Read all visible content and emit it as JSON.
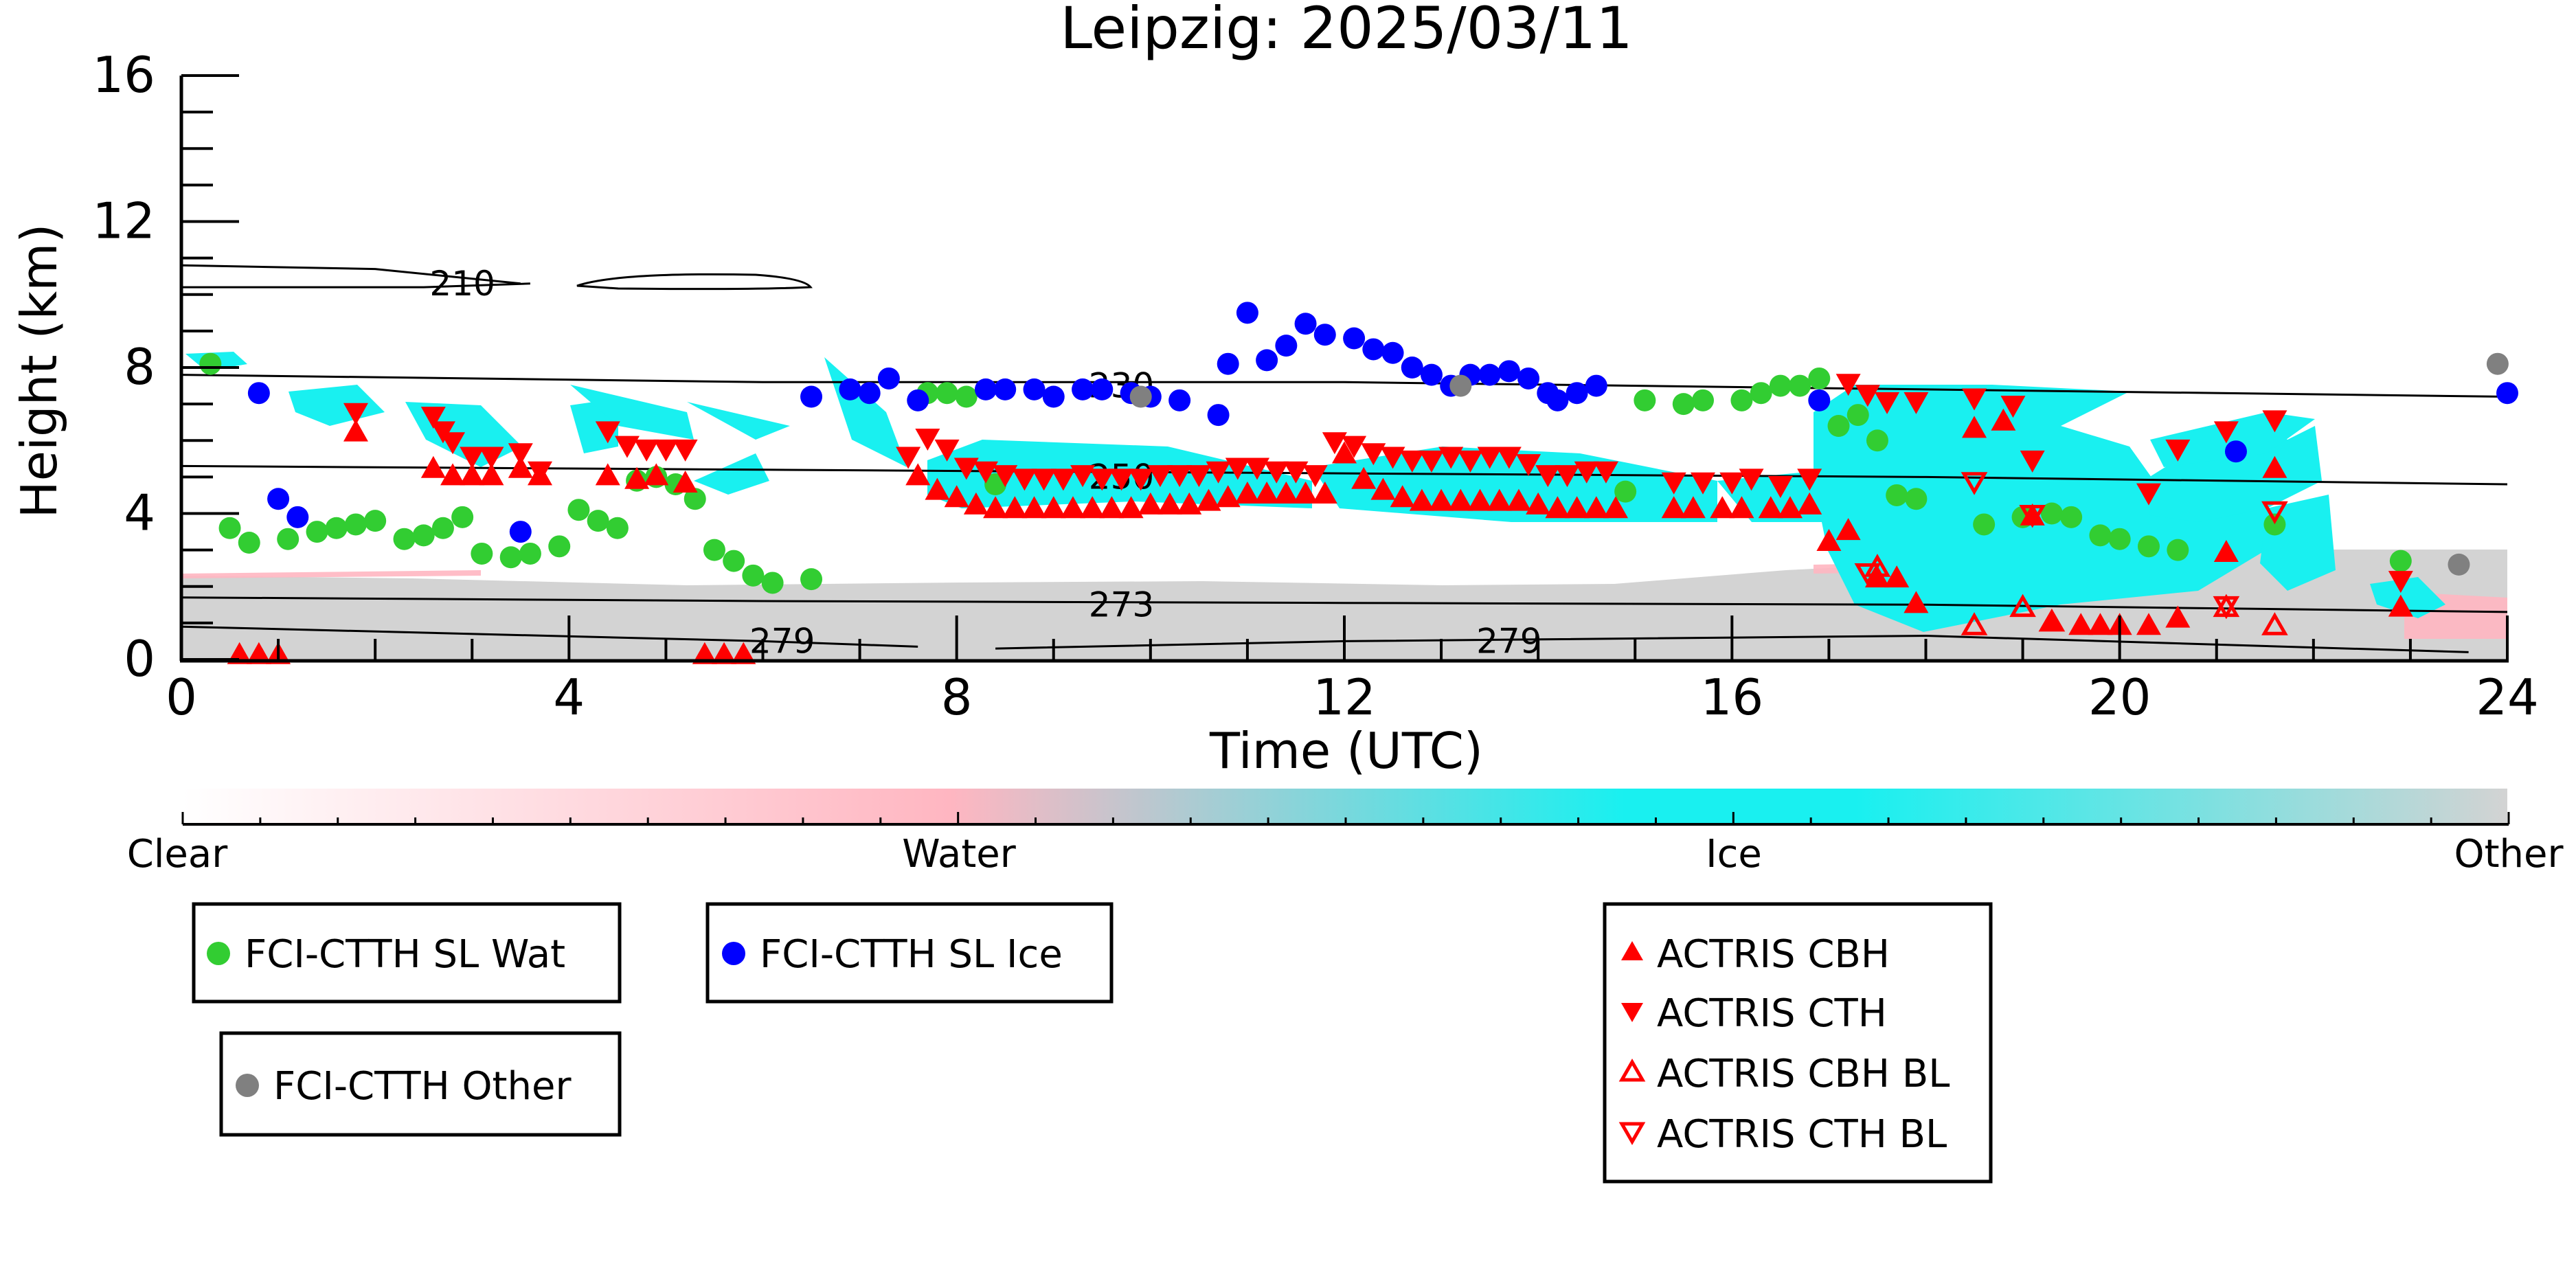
{
  "chart_data": {
    "type": "scatter",
    "title": "Leipzig: 2025/03/11",
    "xlabel": "Time (UTC)",
    "ylabel": "Height (km)",
    "xlim": [
      0,
      24
    ],
    "ylim": [
      0,
      16
    ],
    "x_ticks": [
      0,
      4,
      8,
      12,
      16,
      20,
      24
    ],
    "y_ticks": [
      0,
      4,
      8,
      12,
      16
    ],
    "colorbar": {
      "labels": [
        "Clear",
        "Water",
        "Ice",
        "Other"
      ],
      "stops": [
        "#ffffff",
        "#ffb6c1",
        "#19f0f0",
        "#d3d3d3"
      ]
    },
    "contours": [
      {
        "label": "210",
        "points": [
          [
            0,
            10.8
          ],
          [
            2,
            10.7
          ],
          [
            3.5,
            10.3
          ]
        ],
        "label_at": [
          2.9,
          10.3
        ]
      },
      {
        "label": "210",
        "points": [
          [
            0,
            10.2
          ],
          [
            2.5,
            10.2
          ],
          [
            3.6,
            10.3
          ]
        ]
      },
      {
        "label": "230",
        "points": [
          [
            0,
            7.8
          ],
          [
            6,
            7.6
          ],
          [
            12,
            7.6
          ],
          [
            18,
            7.4
          ],
          [
            24,
            7.2
          ]
        ],
        "label_at": [
          9.7,
          7.5
        ]
      },
      {
        "label": "250",
        "points": [
          [
            0,
            5.3
          ],
          [
            6,
            5.2
          ],
          [
            12,
            5.1
          ],
          [
            18,
            5.0
          ],
          [
            24,
            4.8
          ]
        ],
        "label_at": [
          9.7,
          5.0
        ]
      },
      {
        "label": "273",
        "points": [
          [
            0,
            1.7
          ],
          [
            6,
            1.6
          ],
          [
            12,
            1.55
          ],
          [
            18,
            1.5
          ],
          [
            24,
            1.3
          ]
        ],
        "label_at": [
          9.7,
          1.5
        ]
      },
      {
        "label": "279",
        "points": [
          [
            0,
            0.9
          ],
          [
            6,
            0.5
          ],
          [
            7.6,
            0.35
          ]
        ],
        "label_at": [
          6.2,
          0.5
        ]
      },
      {
        "label": "279",
        "points": [
          [
            8.4,
            0.3
          ],
          [
            12,
            0.5
          ],
          [
            18,
            0.65
          ],
          [
            23.6,
            0.2
          ]
        ],
        "label_at": [
          13.7,
          0.5
        ]
      }
    ],
    "series": [
      {
        "name": "FCI-CTTH SL Wat",
        "color": "#32cd32",
        "marker": "circle",
        "points": [
          [
            0.3,
            8.1
          ],
          [
            0.5,
            3.6
          ],
          [
            0.7,
            3.2
          ],
          [
            1.1,
            3.3
          ],
          [
            1.4,
            3.5
          ],
          [
            1.6,
            3.6
          ],
          [
            1.8,
            3.7
          ],
          [
            2.0,
            3.8
          ],
          [
            2.3,
            3.3
          ],
          [
            2.5,
            3.4
          ],
          [
            2.7,
            3.6
          ],
          [
            2.9,
            3.9
          ],
          [
            3.1,
            2.9
          ],
          [
            3.4,
            2.8
          ],
          [
            3.6,
            2.9
          ],
          [
            3.9,
            3.1
          ],
          [
            4.1,
            4.1
          ],
          [
            4.3,
            3.8
          ],
          [
            4.5,
            3.6
          ],
          [
            4.7,
            4.9
          ],
          [
            4.9,
            5.0
          ],
          [
            5.1,
            4.8
          ],
          [
            5.3,
            4.4
          ],
          [
            5.5,
            3.0
          ],
          [
            5.7,
            2.7
          ],
          [
            5.9,
            2.3
          ],
          [
            6.1,
            2.1
          ],
          [
            6.5,
            2.2
          ],
          [
            7.7,
            7.3
          ],
          [
            7.9,
            7.3
          ],
          [
            8.1,
            7.2
          ],
          [
            8.4,
            4.8
          ],
          [
            14.9,
            4.6
          ],
          [
            15.1,
            7.1
          ],
          [
            15.5,
            7.0
          ],
          [
            15.7,
            7.1
          ],
          [
            16.1,
            7.1
          ],
          [
            16.3,
            7.3
          ],
          [
            16.5,
            7.5
          ],
          [
            16.7,
            7.5
          ],
          [
            16.9,
            7.7
          ],
          [
            17.1,
            6.4
          ],
          [
            17.3,
            6.7
          ],
          [
            17.5,
            6.0
          ],
          [
            17.7,
            4.5
          ],
          [
            17.9,
            4.4
          ],
          [
            18.6,
            3.7
          ],
          [
            19.0,
            3.9
          ],
          [
            19.3,
            4.0
          ],
          [
            19.5,
            3.9
          ],
          [
            19.8,
            3.4
          ],
          [
            20.0,
            3.3
          ],
          [
            20.3,
            3.1
          ],
          [
            20.6,
            3.0
          ],
          [
            21.6,
            3.7
          ],
          [
            22.9,
            2.7
          ]
        ]
      },
      {
        "name": "FCI-CTTH SL Ice",
        "color": "#0000ff",
        "marker": "circle",
        "points": [
          [
            0.8,
            7.3
          ],
          [
            1.0,
            4.4
          ],
          [
            1.2,
            3.9
          ],
          [
            3.5,
            3.5
          ],
          [
            6.5,
            7.2
          ],
          [
            6.9,
            7.4
          ],
          [
            7.1,
            7.3
          ],
          [
            7.3,
            7.7
          ],
          [
            7.6,
            7.1
          ],
          [
            8.3,
            7.4
          ],
          [
            8.5,
            7.4
          ],
          [
            8.8,
            7.4
          ],
          [
            9.0,
            7.2
          ],
          [
            9.3,
            7.4
          ],
          [
            9.5,
            7.4
          ],
          [
            9.8,
            7.3
          ],
          [
            10.0,
            7.2
          ],
          [
            10.3,
            7.1
          ],
          [
            10.7,
            6.7
          ],
          [
            10.8,
            8.1
          ],
          [
            11.0,
            9.5
          ],
          [
            11.2,
            8.2
          ],
          [
            11.4,
            8.6
          ],
          [
            11.6,
            9.2
          ],
          [
            11.8,
            8.9
          ],
          [
            12.1,
            8.8
          ],
          [
            12.3,
            8.5
          ],
          [
            12.5,
            8.4
          ],
          [
            12.7,
            8.0
          ],
          [
            12.9,
            7.8
          ],
          [
            13.1,
            7.5
          ],
          [
            13.3,
            7.8
          ],
          [
            13.5,
            7.8
          ],
          [
            13.7,
            7.9
          ],
          [
            13.9,
            7.7
          ],
          [
            14.1,
            7.3
          ],
          [
            14.2,
            7.1
          ],
          [
            14.4,
            7.3
          ],
          [
            14.6,
            7.5
          ],
          [
            16.9,
            7.1
          ],
          [
            21.2,
            5.7
          ],
          [
            24.0,
            7.3
          ]
        ]
      },
      {
        "name": "FCI-CTTH Other",
        "color": "#808080",
        "marker": "circle",
        "points": [
          [
            9.9,
            7.2
          ],
          [
            13.2,
            7.5
          ],
          [
            23.5,
            2.6
          ],
          [
            23.9,
            8.1
          ]
        ]
      },
      {
        "name": "ACTRIS CBH",
        "color": "#ff0000",
        "marker": "triangle-up",
        "points": [
          [
            0.6,
            0.1
          ],
          [
            0.8,
            0.1
          ],
          [
            1.0,
            0.1
          ],
          [
            1.8,
            6.2
          ],
          [
            2.6,
            5.2
          ],
          [
            2.8,
            5.0
          ],
          [
            3.0,
            5.0
          ],
          [
            3.2,
            5.0
          ],
          [
            3.5,
            5.2
          ],
          [
            3.7,
            5.0
          ],
          [
            4.4,
            5.0
          ],
          [
            4.7,
            4.9
          ],
          [
            4.9,
            5.0
          ],
          [
            5.2,
            4.8
          ],
          [
            5.4,
            0.1
          ],
          [
            5.6,
            0.1
          ],
          [
            5.8,
            0.1
          ],
          [
            7.6,
            5.0
          ],
          [
            7.8,
            4.6
          ],
          [
            8.0,
            4.4
          ],
          [
            8.2,
            4.2
          ],
          [
            8.4,
            4.1
          ],
          [
            8.6,
            4.1
          ],
          [
            8.8,
            4.1
          ],
          [
            9.0,
            4.1
          ],
          [
            9.2,
            4.1
          ],
          [
            9.4,
            4.1
          ],
          [
            9.6,
            4.1
          ],
          [
            9.8,
            4.1
          ],
          [
            10.0,
            4.2
          ],
          [
            10.2,
            4.2
          ],
          [
            10.4,
            4.2
          ],
          [
            10.6,
            4.3
          ],
          [
            10.8,
            4.4
          ],
          [
            11.0,
            4.5
          ],
          [
            11.2,
            4.5
          ],
          [
            11.4,
            4.5
          ],
          [
            11.6,
            4.5
          ],
          [
            11.8,
            4.5
          ],
          [
            12.0,
            5.6
          ],
          [
            12.2,
            4.9
          ],
          [
            12.4,
            4.6
          ],
          [
            12.6,
            4.4
          ],
          [
            12.8,
            4.3
          ],
          [
            13.0,
            4.3
          ],
          [
            13.2,
            4.3
          ],
          [
            13.4,
            4.3
          ],
          [
            13.6,
            4.3
          ],
          [
            13.8,
            4.3
          ],
          [
            14.0,
            4.2
          ],
          [
            14.2,
            4.1
          ],
          [
            14.4,
            4.1
          ],
          [
            14.6,
            4.1
          ],
          [
            14.8,
            4.1
          ],
          [
            15.4,
            4.1
          ],
          [
            15.6,
            4.1
          ],
          [
            15.9,
            4.1
          ],
          [
            16.1,
            4.1
          ],
          [
            16.4,
            4.1
          ],
          [
            16.6,
            4.1
          ],
          [
            16.8,
            4.2
          ],
          [
            17.0,
            3.2
          ],
          [
            17.2,
            3.5
          ],
          [
            17.5,
            2.2
          ],
          [
            17.7,
            2.2
          ],
          [
            17.9,
            1.5
          ],
          [
            18.5,
            6.3
          ],
          [
            18.8,
            6.5
          ],
          [
            19.1,
            3.9
          ],
          [
            19.3,
            1.0
          ],
          [
            19.6,
            0.9
          ],
          [
            19.8,
            0.9
          ],
          [
            20.0,
            0.9
          ],
          [
            20.3,
            0.9
          ],
          [
            20.6,
            1.1
          ],
          [
            21.1,
            2.9
          ],
          [
            21.6,
            5.2
          ],
          [
            22.9,
            1.4
          ]
        ]
      },
      {
        "name": "ACTRIS CTH",
        "color": "#ff0000",
        "marker": "triangle-down",
        "points": [
          [
            1.8,
            6.8
          ],
          [
            2.6,
            6.7
          ],
          [
            2.7,
            6.3
          ],
          [
            2.8,
            6.0
          ],
          [
            3.0,
            5.6
          ],
          [
            3.2,
            5.6
          ],
          [
            3.5,
            5.7
          ],
          [
            3.7,
            5.2
          ],
          [
            4.4,
            6.3
          ],
          [
            4.6,
            5.9
          ],
          [
            4.8,
            5.8
          ],
          [
            5.0,
            5.8
          ],
          [
            5.2,
            5.8
          ],
          [
            7.5,
            5.6
          ],
          [
            7.7,
            6.1
          ],
          [
            7.9,
            5.8
          ],
          [
            8.1,
            5.3
          ],
          [
            8.3,
            5.2
          ],
          [
            8.5,
            5.1
          ],
          [
            8.7,
            5.0
          ],
          [
            8.9,
            5.0
          ],
          [
            9.1,
            5.0
          ],
          [
            9.3,
            5.1
          ],
          [
            9.5,
            5.0
          ],
          [
            9.7,
            5.0
          ],
          [
            9.9,
            5.0
          ],
          [
            10.1,
            5.1
          ],
          [
            10.3,
            5.1
          ],
          [
            10.5,
            5.1
          ],
          [
            10.7,
            5.2
          ],
          [
            10.9,
            5.3
          ],
          [
            11.1,
            5.3
          ],
          [
            11.3,
            5.2
          ],
          [
            11.5,
            5.2
          ],
          [
            11.7,
            5.1
          ],
          [
            11.9,
            6.0
          ],
          [
            12.1,
            5.9
          ],
          [
            12.3,
            5.7
          ],
          [
            12.5,
            5.6
          ],
          [
            12.7,
            5.5
          ],
          [
            12.9,
            5.5
          ],
          [
            13.1,
            5.6
          ],
          [
            13.3,
            5.5
          ],
          [
            13.5,
            5.6
          ],
          [
            13.7,
            5.6
          ],
          [
            13.9,
            5.4
          ],
          [
            14.1,
            5.1
          ],
          [
            14.3,
            5.1
          ],
          [
            14.5,
            5.2
          ],
          [
            14.7,
            5.2
          ],
          [
            15.4,
            4.9
          ],
          [
            15.7,
            4.9
          ],
          [
            16.0,
            4.9
          ],
          [
            16.2,
            5.0
          ],
          [
            16.5,
            4.8
          ],
          [
            16.8,
            5.0
          ],
          [
            17.2,
            7.6
          ],
          [
            17.4,
            7.3
          ],
          [
            17.6,
            7.1
          ],
          [
            17.9,
            7.1
          ],
          [
            18.5,
            7.2
          ],
          [
            18.9,
            7.0
          ],
          [
            19.1,
            5.5
          ],
          [
            20.3,
            4.6
          ],
          [
            20.6,
            5.8
          ],
          [
            21.1,
            6.3
          ],
          [
            21.6,
            6.6
          ],
          [
            22.9,
            2.2
          ]
        ]
      },
      {
        "name": "ACTRIS CBH BL",
        "color": "#ff0000",
        "marker": "triangle-up-open",
        "points": [
          [
            17.5,
            2.5
          ],
          [
            18.5,
            0.9
          ],
          [
            19.0,
            1.4
          ],
          [
            19.3,
            1.0
          ],
          [
            21.1,
            1.4
          ],
          [
            21.6,
            0.9
          ]
        ]
      },
      {
        "name": "ACTRIS CTH BL",
        "color": "#ff0000",
        "marker": "triangle-down-open",
        "points": [
          [
            17.4,
            2.4
          ],
          [
            18.5,
            4.9
          ],
          [
            19.1,
            4.0
          ],
          [
            21.1,
            1.5
          ],
          [
            21.6,
            4.1
          ]
        ]
      }
    ],
    "legend": [
      {
        "entries": [
          "FCI-CTTH SL Wat"
        ]
      },
      {
        "entries": [
          "FCI-CTTH SL Ice"
        ]
      },
      {
        "entries": [
          "FCI-CTTH Other"
        ]
      },
      {
        "entries": [
          "ACTRIS CBH",
          "ACTRIS CTH",
          "ACTRIS CBH BL",
          "ACTRIS CTH BL"
        ]
      }
    ]
  }
}
